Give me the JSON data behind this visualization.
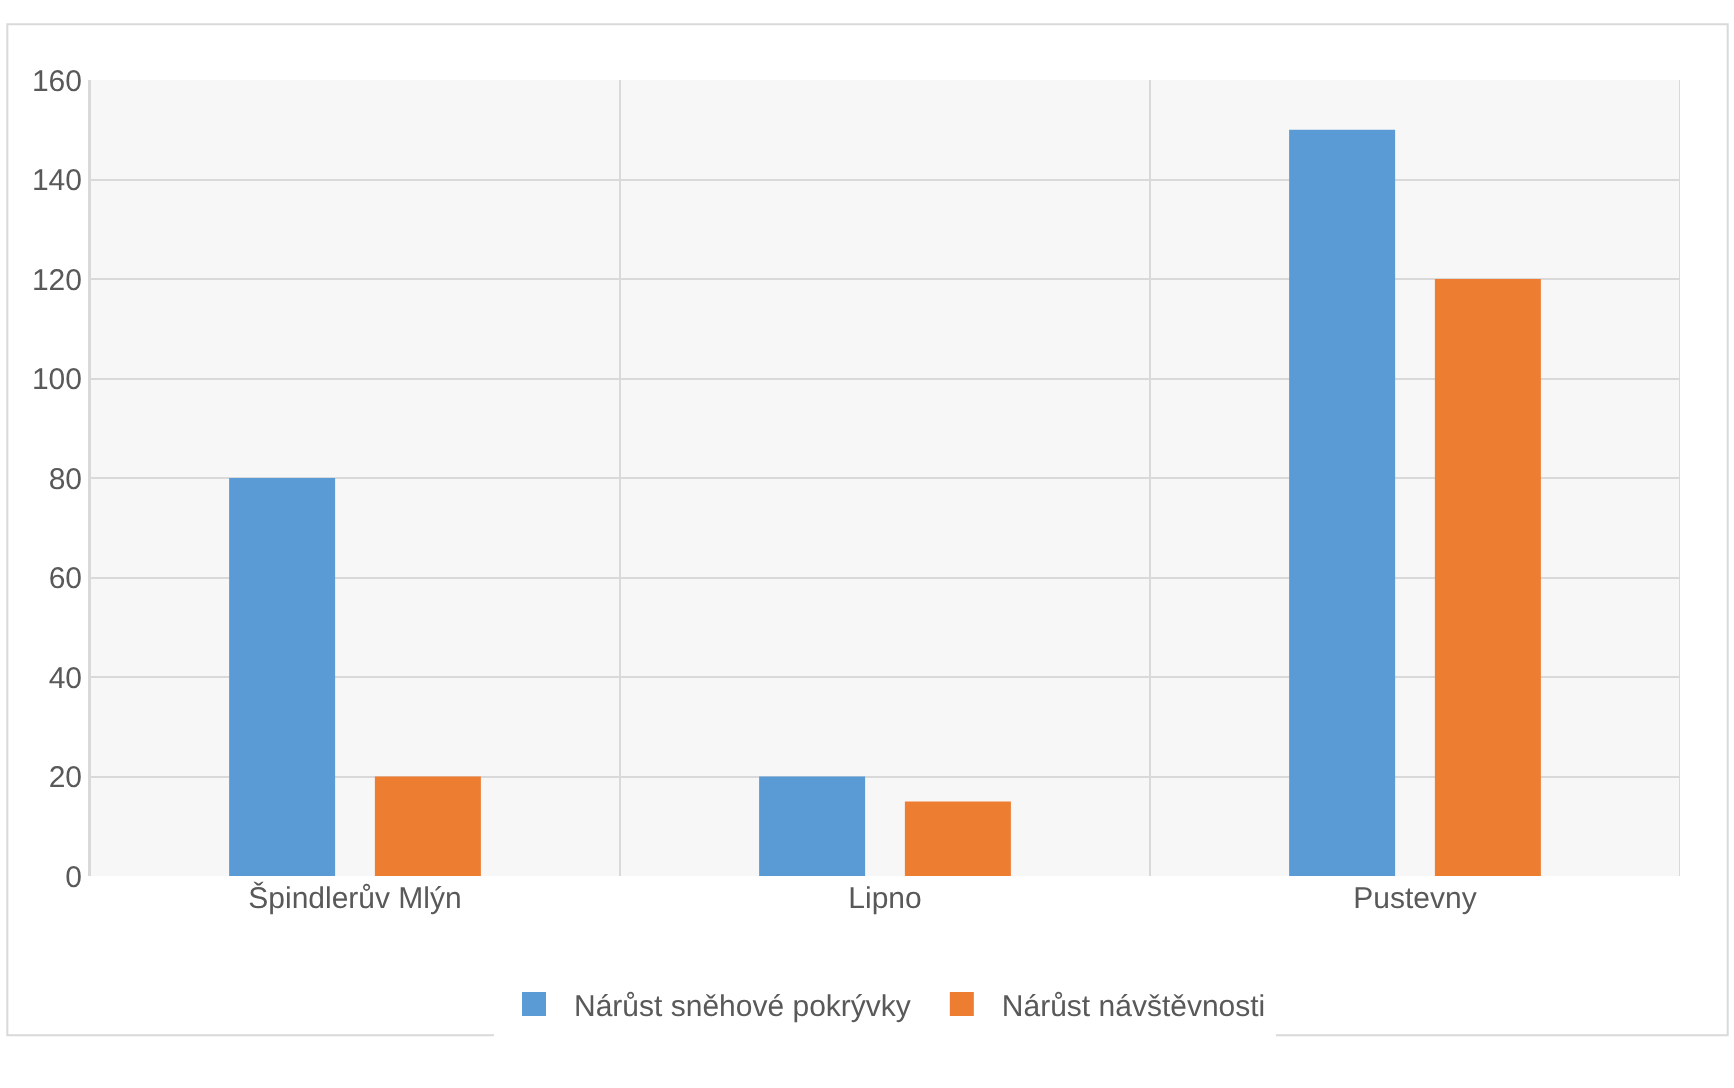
{
  "chart_data": {
    "type": "bar",
    "categories": [
      "Špindlerův Mlýn",
      "Lipno",
      "Pustevny"
    ],
    "series": [
      {
        "name": "Nárůst sněhové pokrývky",
        "color": "#5b9bd5",
        "values": [
          80,
          20,
          150
        ]
      },
      {
        "name": "Nárůst návštěvnosti",
        "color": "#ed7d31",
        "values": [
          20,
          15,
          120
        ]
      }
    ],
    "ylim": [
      0,
      160
    ],
    "yticks": [
      0,
      20,
      40,
      60,
      80,
      100,
      120,
      140,
      160
    ],
    "grid": true,
    "legend": "bottom"
  }
}
